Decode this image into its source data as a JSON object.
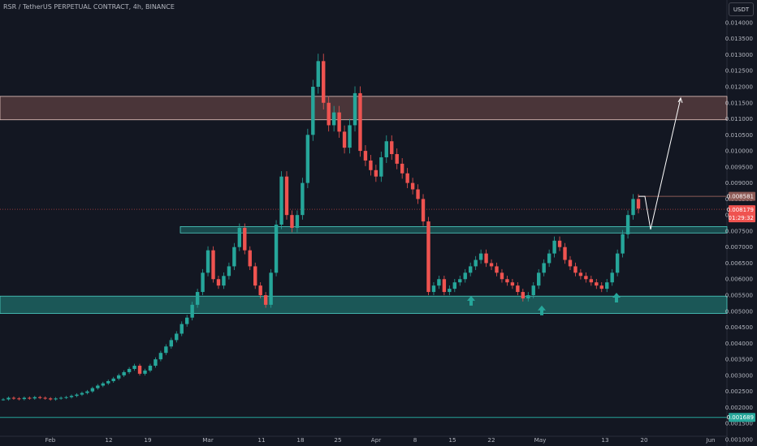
{
  "header": {
    "title": "RSR / TetherUS PERPETUAL CONTRACT, 4h, BINANCE",
    "currency_button": "USDT"
  },
  "colors": {
    "background": "#131722",
    "axis_text": "#b2b5be",
    "candle_up": "#26a69a",
    "candle_down": "#ef5350",
    "support_zone": "#26a69a",
    "resistance_zone": "#8d5b57",
    "projection": "#ffffff"
  },
  "chart_data": {
    "type": "candlestick",
    "title": "RSR / TetherUS PERPETUAL CONTRACT, 4h, BINANCE",
    "ylim": [
      0.0011,
      0.0142
    ],
    "y_ticks": [
      "0.014000",
      "0.013500",
      "0.013000",
      "0.012500",
      "0.012000",
      "0.011500",
      "0.011000",
      "0.010500",
      "0.010000",
      "0.009500",
      "0.009000",
      "0.008500",
      "0.008000",
      "0.007500",
      "0.007000",
      "0.006500",
      "0.006000",
      "0.005500",
      "0.005000",
      "0.004500",
      "0.004000",
      "0.003500",
      "0.003000",
      "0.002500",
      "0.002000",
      "0.001500",
      "0.001000"
    ],
    "x_ticks": [
      "Feb",
      "12",
      "19",
      "Mar",
      "11",
      "18",
      "25",
      "Apr",
      "8",
      "15",
      "22",
      "May",
      "13",
      "20",
      "Jun"
    ],
    "price_labels": [
      {
        "label": "0.008581",
        "value": 0.008581,
        "color": "#8d5b57"
      },
      {
        "label": "0.008179",
        "sublabel": "01:29:32",
        "value": 0.008179,
        "color": "#ef5350"
      },
      {
        "label": "0.001689",
        "value": 0.001689,
        "color": "#26a69a"
      }
    ],
    "zones": [
      {
        "kind": "resistance",
        "low": 0.01097,
        "high": 0.0117,
        "from": "Jan 28",
        "to": "right-edge"
      },
      {
        "kind": "level",
        "low": 0.00744,
        "high": 0.00764,
        "from": "Mar 3",
        "to": "right-edge"
      },
      {
        "kind": "support",
        "low": 0.00493,
        "high": 0.00547,
        "from": "Jan 28",
        "to": "right-edge"
      }
    ],
    "horizontal_lines": [
      {
        "value": 0.001689,
        "color": "#26a69a"
      },
      {
        "value": 0.008581,
        "color": "#8d5b57"
      },
      {
        "value": 0.008179,
        "color": "#ef5350",
        "dotted": true
      }
    ],
    "arrows": [
      {
        "date": "May 17 - approx",
        "value": 0.0053,
        "label": "up-arrow"
      },
      {
        "date": "May 1 - approx",
        "value": 0.005,
        "label": "up-arrow"
      },
      {
        "date": "May 15 - approx",
        "value": 0.0054,
        "label": "up-arrow"
      }
    ],
    "projection_path": [
      0.008581,
      0.008581,
      0.00755,
      0.01165
    ],
    "series": [
      {
        "close": [
          0.00225,
          0.0023,
          0.00228,
          0.00226,
          0.0023,
          0.00228,
          0.00232,
          0.0023,
          0.00228,
          0.00225,
          0.00228,
          0.0023,
          0.00232,
          0.00236,
          0.0024,
          0.00245,
          0.0025,
          0.0026,
          0.00268,
          0.00275,
          0.00282,
          0.0029,
          0.003,
          0.0031,
          0.0032,
          0.0033,
          0.00305,
          0.00315,
          0.0033,
          0.0035,
          0.0037,
          0.0039,
          0.0041,
          0.0043,
          0.0046,
          0.0048,
          0.0052,
          0.0056,
          0.0062,
          0.0069,
          0.006,
          0.0058,
          0.0061,
          0.0064,
          0.007,
          0.0076,
          0.0069,
          0.0064,
          0.0058,
          0.0055,
          0.0052,
          0.0062,
          0.0077,
          0.0092,
          0.008,
          0.0076,
          0.008,
          0.009,
          0.0105,
          0.012,
          0.0128,
          0.0115,
          0.0108,
          0.0112,
          0.0106,
          0.0101,
          0.0108,
          0.0118,
          0.01,
          0.0097,
          0.0094,
          0.0092,
          0.0098,
          0.0103,
          0.0099,
          0.0096,
          0.0093,
          0.009,
          0.0088,
          0.0085,
          0.0078,
          0.0056,
          0.0058,
          0.006,
          0.0056,
          0.0057,
          0.0059,
          0.006,
          0.0062,
          0.0064,
          0.0066,
          0.0068,
          0.0065,
          0.0064,
          0.0062,
          0.006,
          0.0059,
          0.0058,
          0.0056,
          0.0054,
          0.0055,
          0.0058,
          0.0062,
          0.0065,
          0.0068,
          0.0072,
          0.007,
          0.0066,
          0.0064,
          0.0062,
          0.0061,
          0.006,
          0.0059,
          0.0058,
          0.0057,
          0.0059,
          0.0062,
          0.0068,
          0.0074,
          0.008,
          0.0085,
          0.0082
        ]
      }
    ]
  }
}
